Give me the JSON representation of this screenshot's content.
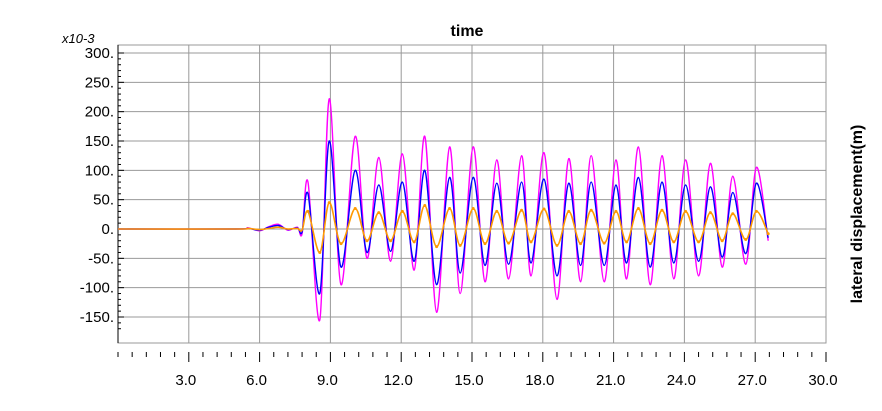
{
  "chart_data": {
    "type": "line",
    "title": "time",
    "ylabel": "lateral displacement(m)",
    "y_multiplier": "x10-3",
    "xlim": [
      0,
      30
    ],
    "ylim": [
      -170,
      300
    ],
    "grid": true,
    "x_ticks": [
      "3.0",
      "6.0",
      "9.0",
      "12.0",
      "15.0",
      "18.0",
      "21.0",
      "24.0",
      "27.0",
      "30.0"
    ],
    "y_ticks": [
      "300.",
      "250.",
      "200.",
      "150.",
      "100.",
      "50.",
      "0.",
      "-50.",
      "-100.",
      "-150."
    ],
    "y_tick_values": [
      300,
      250,
      200,
      150,
      100,
      50,
      0,
      -50,
      -100,
      -150
    ],
    "x_tick_values": [
      3,
      6,
      9,
      12,
      15,
      18,
      21,
      24,
      27,
      30
    ],
    "series": [
      {
        "color": "#ff00ff",
        "start": 0.0,
        "end": 27.5,
        "pre_event": [
          [
            5.0,
            0
          ],
          [
            5.5,
            2
          ],
          [
            6.0,
            -3
          ],
          [
            6.4,
            4
          ],
          [
            6.8,
            8
          ],
          [
            7.2,
            -2
          ],
          [
            7.6,
            3
          ],
          [
            7.8,
            -8
          ]
        ],
        "peaks": [
          [
            8.05,
            80
          ],
          [
            8.55,
            -155
          ],
          [
            8.95,
            222
          ],
          [
            9.45,
            -95
          ],
          [
            10.05,
            158
          ],
          [
            10.55,
            -50
          ],
          [
            11.05,
            122
          ],
          [
            11.55,
            -55
          ],
          [
            12.05,
            128
          ],
          [
            12.55,
            -70
          ],
          [
            13.0,
            158
          ],
          [
            13.5,
            -142
          ],
          [
            14.05,
            140
          ],
          [
            14.5,
            -110
          ],
          [
            15.05,
            140
          ],
          [
            15.55,
            -90
          ],
          [
            16.05,
            118
          ],
          [
            16.55,
            -85
          ],
          [
            17.1,
            125
          ],
          [
            17.5,
            -80
          ],
          [
            18.05,
            130
          ],
          [
            18.6,
            -120
          ],
          [
            19.1,
            120
          ],
          [
            19.6,
            -90
          ],
          [
            20.05,
            125
          ],
          [
            20.6,
            -90
          ],
          [
            21.1,
            118
          ],
          [
            21.55,
            -85
          ],
          [
            22.05,
            140
          ],
          [
            22.55,
            -95
          ],
          [
            23.05,
            125
          ],
          [
            23.55,
            -85
          ],
          [
            24.05,
            118
          ],
          [
            24.6,
            -80
          ],
          [
            25.1,
            112
          ],
          [
            25.6,
            -65
          ],
          [
            26.05,
            90
          ],
          [
            26.6,
            -60
          ],
          [
            27.05,
            105
          ],
          [
            27.55,
            -20
          ]
        ]
      },
      {
        "color": "#0000ff",
        "start": 0.0,
        "end": 27.5,
        "pre_event": [
          [
            5.0,
            0
          ],
          [
            5.5,
            1
          ],
          [
            6.0,
            -2
          ],
          [
            6.4,
            3
          ],
          [
            6.8,
            6
          ],
          [
            7.2,
            -1
          ],
          [
            7.6,
            2
          ],
          [
            7.8,
            -5
          ]
        ],
        "peaks": [
          [
            8.05,
            60
          ],
          [
            8.55,
            -110
          ],
          [
            8.95,
            150
          ],
          [
            9.45,
            -65
          ],
          [
            10.05,
            100
          ],
          [
            10.55,
            -40
          ],
          [
            11.05,
            75
          ],
          [
            11.55,
            -38
          ],
          [
            12.05,
            80
          ],
          [
            12.55,
            -55
          ],
          [
            13.0,
            100
          ],
          [
            13.5,
            -95
          ],
          [
            14.05,
            88
          ],
          [
            14.5,
            -75
          ],
          [
            15.05,
            88
          ],
          [
            15.55,
            -62
          ],
          [
            16.05,
            78
          ],
          [
            16.55,
            -60
          ],
          [
            17.1,
            80
          ],
          [
            17.5,
            -58
          ],
          [
            18.05,
            85
          ],
          [
            18.6,
            -80
          ],
          [
            19.1,
            78
          ],
          [
            19.6,
            -62
          ],
          [
            20.05,
            80
          ],
          [
            20.6,
            -62
          ],
          [
            21.1,
            75
          ],
          [
            21.55,
            -58
          ],
          [
            22.05,
            88
          ],
          [
            22.55,
            -65
          ],
          [
            23.05,
            80
          ],
          [
            23.55,
            -58
          ],
          [
            24.05,
            75
          ],
          [
            24.6,
            -55
          ],
          [
            25.1,
            72
          ],
          [
            25.6,
            -48
          ],
          [
            26.05,
            62
          ],
          [
            26.6,
            -42
          ],
          [
            27.05,
            78
          ],
          [
            27.55,
            -15
          ]
        ]
      },
      {
        "color": "#ff9900",
        "start": 0.0,
        "end": 27.5,
        "pre_event": [
          [
            5.0,
            0
          ],
          [
            5.5,
            1
          ],
          [
            6.0,
            -1
          ],
          [
            6.4,
            1
          ],
          [
            6.8,
            3
          ],
          [
            7.2,
            0
          ],
          [
            7.6,
            1
          ],
          [
            7.8,
            -2
          ]
        ],
        "peaks": [
          [
            8.05,
            30
          ],
          [
            8.55,
            -40
          ],
          [
            8.95,
            45
          ],
          [
            9.45,
            -25
          ],
          [
            10.05,
            35
          ],
          [
            10.55,
            -20
          ],
          [
            11.05,
            28
          ],
          [
            11.55,
            -20
          ],
          [
            12.05,
            30
          ],
          [
            12.55,
            -22
          ],
          [
            13.0,
            40
          ],
          [
            13.5,
            -30
          ],
          [
            14.05,
            35
          ],
          [
            14.5,
            -28
          ],
          [
            15.05,
            35
          ],
          [
            15.55,
            -25
          ],
          [
            16.05,
            30
          ],
          [
            16.55,
            -24
          ],
          [
            17.1,
            32
          ],
          [
            17.5,
            -22
          ],
          [
            18.05,
            34
          ],
          [
            18.6,
            -28
          ],
          [
            19.1,
            30
          ],
          [
            19.6,
            -25
          ],
          [
            20.05,
            32
          ],
          [
            20.6,
            -24
          ],
          [
            21.1,
            30
          ],
          [
            21.55,
            -22
          ],
          [
            22.05,
            35
          ],
          [
            22.55,
            -25
          ],
          [
            23.05,
            32
          ],
          [
            23.55,
            -22
          ],
          [
            24.05,
            30
          ],
          [
            24.6,
            -22
          ],
          [
            25.1,
            28
          ],
          [
            25.6,
            -20
          ],
          [
            26.05,
            26
          ],
          [
            26.6,
            -18
          ],
          [
            27.05,
            30
          ],
          [
            27.55,
            -8
          ]
        ]
      }
    ]
  }
}
